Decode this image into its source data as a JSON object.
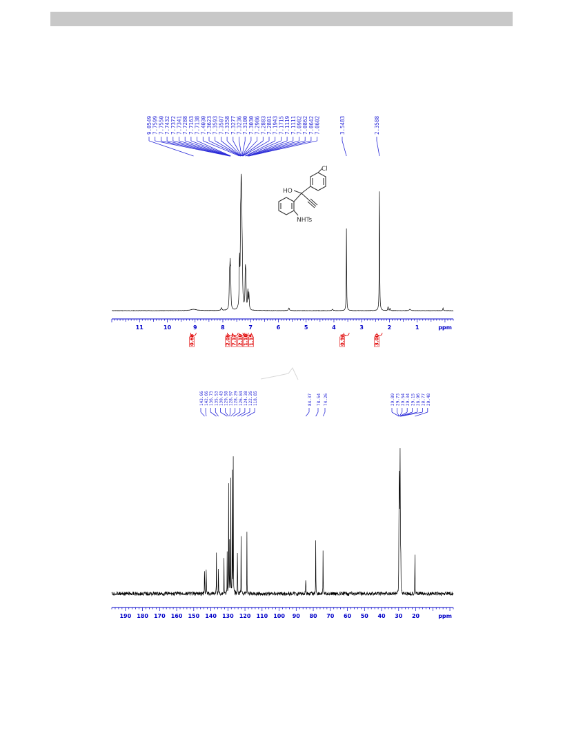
{
  "header": {
    "bar_color": "#c8c8c8"
  },
  "colors": {
    "peak_label": "#2a2ad8",
    "axis": "#0000c8",
    "integral": "#e00000",
    "spectrum": "#000000"
  },
  "structure": {
    "labels": [
      "Cl",
      "HO",
      "NHTs"
    ]
  },
  "chart_data": [
    {
      "type": "line",
      "xlabel": "ppm",
      "xlim": [
        12.0,
        -0.3
      ],
      "x_reversed": true,
      "ticks": [
        11,
        10,
        9,
        8,
        7,
        6,
        5,
        4,
        3,
        2,
        1
      ],
      "peak_labels": [
        "9.0549",
        "7.7599",
        "7.7550",
        "7.7432",
        "7.7372",
        "7.7341",
        "7.7288",
        "7.7163",
        "7.7138",
        "7.4030",
        "7.3623",
        "7.3593",
        "7.3507",
        "7.3358",
        "7.3277",
        "7.3236",
        "7.3100",
        "7.3030",
        "7.2986",
        "7.2883",
        "7.2801",
        "7.1943",
        "7.1715",
        "7.1119",
        "7.1111",
        "7.0982",
        "7.0862",
        "7.0642",
        "7.0602",
        "3.5483",
        "2.3588"
      ],
      "integrals": [
        {
          "center": 9.06,
          "value": "0.68"
        },
        {
          "center": 7.74,
          "value": "2.05"
        },
        {
          "center": 7.55,
          "value": "7.17"
        },
        {
          "center": 7.32,
          "value": "2.10"
        },
        {
          "center": 7.18,
          "value": "1.10"
        },
        {
          "center": 7.07,
          "value": "1.15"
        },
        {
          "center": 3.55,
          "value": "0.94"
        },
        {
          "center": 2.36,
          "value": "3.00"
        }
      ],
      "peaks": [
        {
          "x": 9.05,
          "h": 0.01,
          "w": 0.12
        },
        {
          "x": 8.05,
          "h": 0.02,
          "w": 0.02
        },
        {
          "x": 7.76,
          "h": 0.22,
          "w": 0.012
        },
        {
          "x": 7.74,
          "h": 0.26,
          "w": 0.012
        },
        {
          "x": 7.72,
          "h": 0.24,
          "w": 0.012
        },
        {
          "x": 7.4,
          "h": 0.35,
          "w": 0.012
        },
        {
          "x": 7.36,
          "h": 0.52,
          "w": 0.012
        },
        {
          "x": 7.34,
          "h": 0.72,
          "w": 0.012
        },
        {
          "x": 7.32,
          "h": 0.58,
          "w": 0.012
        },
        {
          "x": 7.3,
          "h": 0.28,
          "w": 0.012
        },
        {
          "x": 7.19,
          "h": 0.27,
          "w": 0.012
        },
        {
          "x": 7.17,
          "h": 0.22,
          "w": 0.012
        },
        {
          "x": 7.1,
          "h": 0.14,
          "w": 0.012
        },
        {
          "x": 7.06,
          "h": 0.12,
          "w": 0.012
        },
        {
          "x": 5.62,
          "h": 0.02,
          "w": 0.02
        },
        {
          "x": 4.05,
          "h": 0.01,
          "w": 0.02
        },
        {
          "x": 3.548,
          "h": 0.6,
          "w": 0.008
        },
        {
          "x": 2.359,
          "h": 1.0,
          "w": 0.008
        },
        {
          "x": 2.05,
          "h": 0.03,
          "w": 0.01
        },
        {
          "x": 1.98,
          "h": 0.02,
          "w": 0.01
        },
        {
          "x": 1.26,
          "h": 0.01,
          "w": 0.03
        },
        {
          "x": 0.07,
          "h": 0.02,
          "w": 0.01
        }
      ]
    },
    {
      "type": "line",
      "xlabel": "ppm",
      "xlim": [
        198,
        -2
      ],
      "x_reversed": true,
      "ticks": [
        190,
        180,
        170,
        160,
        150,
        140,
        130,
        120,
        110,
        100,
        90,
        80,
        70,
        60,
        50,
        40,
        30,
        20
      ],
      "peak_labels": [
        "143.66",
        "142.66",
        "136.73",
        "135.53",
        "130.43",
        "129.58",
        "128.97",
        "128.29",
        "126.84",
        "124.38",
        "122.26",
        "118.85",
        "84.37",
        "78.54",
        "74.26",
        "29.89",
        "29.73",
        "29.54",
        "29.34",
        "29.15",
        "28.96",
        "28.77",
        "20.48"
      ],
      "peaks": [
        {
          "x": 143.66,
          "h": 0.27,
          "w": 0.06
        },
        {
          "x": 142.66,
          "h": 0.27,
          "w": 0.06
        },
        {
          "x": 136.73,
          "h": 0.29,
          "w": 0.06
        },
        {
          "x": 135.53,
          "h": 0.23,
          "w": 0.06
        },
        {
          "x": 132.3,
          "h": 0.25,
          "w": 0.06
        },
        {
          "x": 130.43,
          "h": 0.27,
          "w": 0.06
        },
        {
          "x": 129.58,
          "h": 0.75,
          "w": 0.06
        },
        {
          "x": 128.97,
          "h": 0.45,
          "w": 0.06
        },
        {
          "x": 128.29,
          "h": 0.78,
          "w": 0.06
        },
        {
          "x": 127.4,
          "h": 1.0,
          "w": 0.06
        },
        {
          "x": 126.84,
          "h": 0.98,
          "w": 0.06
        },
        {
          "x": 124.38,
          "h": 0.46,
          "w": 0.06
        },
        {
          "x": 122.26,
          "h": 0.46,
          "w": 0.06
        },
        {
          "x": 118.85,
          "h": 0.42,
          "w": 0.06
        },
        {
          "x": 84.37,
          "h": 0.2,
          "w": 0.06
        },
        {
          "x": 78.54,
          "h": 0.46,
          "w": 0.06
        },
        {
          "x": 74.26,
          "h": 0.35,
          "w": 0.06
        },
        {
          "x": 29.89,
          "h": 0.4,
          "w": 0.06
        },
        {
          "x": 29.73,
          "h": 0.6,
          "w": 0.06
        },
        {
          "x": 29.54,
          "h": 0.82,
          "w": 0.06
        },
        {
          "x": 29.34,
          "h": 1.0,
          "w": 0.06
        },
        {
          "x": 29.15,
          "h": 0.82,
          "w": 0.06
        },
        {
          "x": 28.96,
          "h": 0.6,
          "w": 0.06
        },
        {
          "x": 28.77,
          "h": 0.4,
          "w": 0.06
        },
        {
          "x": 20.48,
          "h": 0.46,
          "w": 0.06
        }
      ]
    }
  ]
}
